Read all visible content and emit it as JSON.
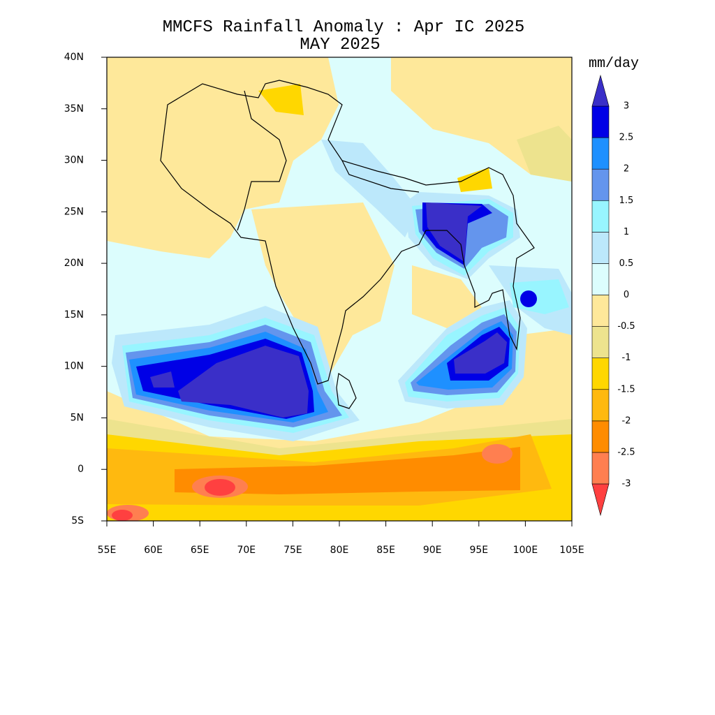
{
  "title": "MMCFS Rainfall Anomaly : Apr IC 2025",
  "subtitle": "MAY 2025",
  "map": {
    "lat_ticks": [
      {
        "value": 40,
        "label": "40N"
      },
      {
        "value": 35,
        "label": "35N"
      },
      {
        "value": 30,
        "label": "30N"
      },
      {
        "value": 25,
        "label": "25N"
      },
      {
        "value": 20,
        "label": "20N"
      },
      {
        "value": 15,
        "label": "15N"
      },
      {
        "value": 10,
        "label": "10N"
      },
      {
        "value": 5,
        "label": "5N"
      },
      0,
      {
        "value": -5,
        "label": "5S"
      }
    ],
    "lon_ticks": [
      {
        "value": 55,
        "label": "55E"
      },
      {
        "value": 60,
        "label": "60E"
      },
      {
        "value": 65,
        "label": "65E"
      },
      {
        "value": 70,
        "label": "70E"
      },
      {
        "value": 75,
        "label": "75E"
      },
      {
        "value": 80,
        "label": "80E"
      },
      {
        "value": 85,
        "label": "85E"
      },
      {
        "value": 90,
        "label": "90E"
      },
      {
        "value": 95,
        "label": "95E"
      },
      {
        "value": 100,
        "label": "100E"
      },
      {
        "value": 105,
        "label": "105E"
      }
    ]
  },
  "colorbar": {
    "label": "mm/day",
    "levels": [
      -3,
      -2.5,
      -2,
      -1.5,
      -1,
      -0.5,
      0,
      0.5,
      1,
      1.5,
      2,
      2.5,
      3
    ],
    "colors": [
      "#ff4040",
      "#ff7f50",
      "#ff8c00",
      "#ffb90f",
      "#ffd700",
      "#ede38e",
      "#fee89a",
      "#dcfdfd",
      "#bce8fb",
      "#98f5ff",
      "#6495ed",
      "#1e90ff",
      "#0000e6",
      "#3a2fc8"
    ]
  }
}
